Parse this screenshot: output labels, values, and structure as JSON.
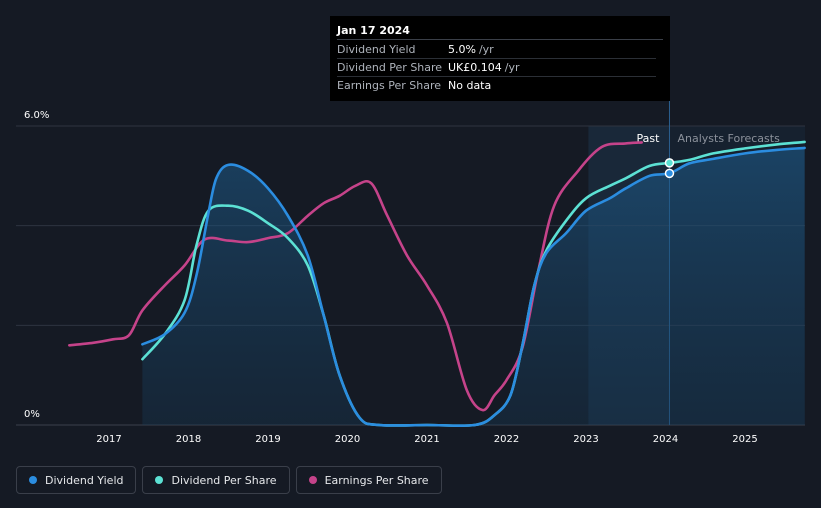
{
  "chart_data": {
    "type": "line",
    "x_range": [
      2016.2,
      2025.75
    ],
    "y_range": [
      0,
      6.0
    ],
    "y_ticks": [
      {
        "value": 6.0,
        "label": "6.0%"
      },
      {
        "value": 0,
        "label": "0%"
      }
    ],
    "x_ticks": [
      {
        "value": 2017,
        "label": "2017"
      },
      {
        "value": 2018,
        "label": "2018"
      },
      {
        "value": 2019,
        "label": "2019"
      },
      {
        "value": 2020,
        "label": "2020"
      },
      {
        "value": 2021,
        "label": "2021"
      },
      {
        "value": 2022,
        "label": "2022"
      },
      {
        "value": 2023,
        "label": "2023"
      },
      {
        "value": 2024,
        "label": "2024"
      },
      {
        "value": 2025,
        "label": "2025"
      }
    ],
    "past_shade_start": 2023.03,
    "divider_x": 2024.05,
    "past_label": "Past",
    "forecast_label": "Analysts Forecasts",
    "series": [
      {
        "name": "Dividend Yield",
        "color": "#2b8de0",
        "fill": true,
        "points": [
          [
            2017.42,
            1.62
          ],
          [
            2017.7,
            1.82
          ],
          [
            2017.95,
            2.25
          ],
          [
            2018.1,
            3.0
          ],
          [
            2018.25,
            4.25
          ],
          [
            2018.35,
            4.95
          ],
          [
            2018.5,
            5.22
          ],
          [
            2018.75,
            5.1
          ],
          [
            2019.0,
            4.75
          ],
          [
            2019.25,
            4.2
          ],
          [
            2019.5,
            3.4
          ],
          [
            2019.7,
            2.2
          ],
          [
            2019.9,
            1.0
          ],
          [
            2020.15,
            0.15
          ],
          [
            2020.4,
            0
          ],
          [
            2021.0,
            0
          ],
          [
            2021.6,
            0
          ],
          [
            2021.85,
            0.2
          ],
          [
            2022.05,
            0.6
          ],
          [
            2022.2,
            1.6
          ],
          [
            2022.35,
            2.8
          ],
          [
            2022.5,
            3.45
          ],
          [
            2022.75,
            3.85
          ],
          [
            2023.0,
            4.3
          ],
          [
            2023.3,
            4.55
          ],
          [
            2023.5,
            4.75
          ],
          [
            2023.8,
            5.0
          ],
          [
            2024.05,
            5.05
          ],
          [
            2024.3,
            5.25
          ],
          [
            2024.6,
            5.34
          ],
          [
            2025.0,
            5.45
          ],
          [
            2025.4,
            5.52
          ],
          [
            2025.75,
            5.56
          ]
        ]
      },
      {
        "name": "Dividend Per Share",
        "color": "#5ce1d4",
        "fill": false,
        "points": [
          [
            2017.42,
            1.32
          ],
          [
            2017.7,
            1.82
          ],
          [
            2017.95,
            2.5
          ],
          [
            2018.1,
            3.6
          ],
          [
            2018.25,
            4.3
          ],
          [
            2018.5,
            4.4
          ],
          [
            2018.75,
            4.3
          ],
          [
            2019.0,
            4.05
          ],
          [
            2019.25,
            3.75
          ],
          [
            2019.5,
            3.2
          ],
          [
            2019.7,
            2.2
          ],
          [
            2019.9,
            1.0
          ],
          [
            2020.15,
            0.15
          ],
          [
            2020.4,
            0
          ],
          [
            2021.0,
            0
          ],
          [
            2021.6,
            0
          ],
          [
            2021.85,
            0.2
          ],
          [
            2022.05,
            0.6
          ],
          [
            2022.2,
            1.6
          ],
          [
            2022.35,
            2.8
          ],
          [
            2022.5,
            3.5
          ],
          [
            2022.75,
            4.1
          ],
          [
            2023.0,
            4.55
          ],
          [
            2023.3,
            4.8
          ],
          [
            2023.5,
            4.95
          ],
          [
            2023.8,
            5.2
          ],
          [
            2024.05,
            5.26
          ],
          [
            2024.3,
            5.32
          ],
          [
            2024.6,
            5.45
          ],
          [
            2025.0,
            5.55
          ],
          [
            2025.4,
            5.63
          ],
          [
            2025.75,
            5.68
          ]
        ]
      },
      {
        "name": "Earnings Per Share",
        "color": "#c5438a",
        "fill": false,
        "points": [
          [
            2016.5,
            1.6
          ],
          [
            2016.8,
            1.65
          ],
          [
            2017.05,
            1.72
          ],
          [
            2017.25,
            1.8
          ],
          [
            2017.42,
            2.3
          ],
          [
            2017.7,
            2.8
          ],
          [
            2017.95,
            3.2
          ],
          [
            2018.2,
            3.72
          ],
          [
            2018.5,
            3.7
          ],
          [
            2018.75,
            3.67
          ],
          [
            2019.0,
            3.75
          ],
          [
            2019.25,
            3.85
          ],
          [
            2019.5,
            4.2
          ],
          [
            2019.7,
            4.45
          ],
          [
            2019.9,
            4.6
          ],
          [
            2020.1,
            4.8
          ],
          [
            2020.3,
            4.85
          ],
          [
            2020.5,
            4.2
          ],
          [
            2020.75,
            3.4
          ],
          [
            2021.0,
            2.8
          ],
          [
            2021.25,
            2.05
          ],
          [
            2021.5,
            0.7
          ],
          [
            2021.7,
            0.3
          ],
          [
            2021.85,
            0.6
          ],
          [
            2022.0,
            0.9
          ],
          [
            2022.2,
            1.55
          ],
          [
            2022.4,
            3.1
          ],
          [
            2022.6,
            4.4
          ],
          [
            2022.9,
            5.1
          ],
          [
            2023.2,
            5.58
          ],
          [
            2023.5,
            5.65
          ],
          [
            2023.7,
            5.67
          ]
        ]
      }
    ]
  },
  "tooltip": {
    "date": "Jan 17 2024",
    "rows": [
      {
        "name": "Dividend Yield",
        "value": "5.0%",
        "unit": "/yr",
        "color": "#2b8de0"
      },
      {
        "name": "Dividend Per Share",
        "value": "UK£0.104",
        "unit": "/yr",
        "color": "#5ce1d4"
      },
      {
        "name": "Earnings Per Share",
        "value": "No data",
        "unit": "",
        "color": "#6b7079"
      }
    ]
  },
  "legend": [
    {
      "label": "Dividend Yield",
      "color": "#2b8de0"
    },
    {
      "label": "Dividend Per Share",
      "color": "#5ce1d4"
    },
    {
      "label": "Earnings Per Share",
      "color": "#c5438a"
    }
  ]
}
